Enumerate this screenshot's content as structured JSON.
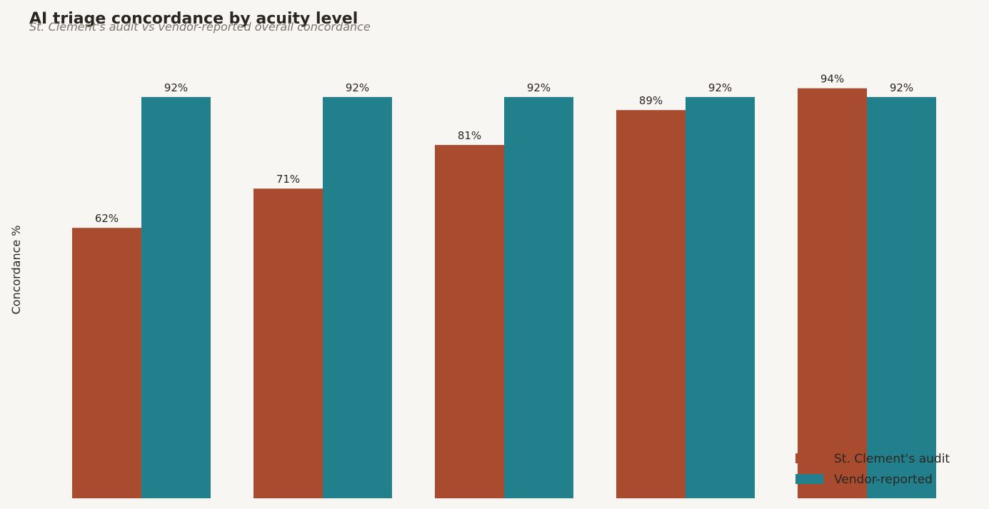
{
  "chart_data": {
    "type": "bar",
    "title": "AI triage concordance by acuity level",
    "subtitle": "St. Clement's audit vs vendor-reported overall concordance",
    "y_label": "Concordance %",
    "categories": [
      null,
      null,
      null,
      null,
      null
    ],
    "series": [
      {
        "name": "St. Clement's audit",
        "color": "#a84b2f",
        "values": [
          62,
          71,
          81,
          89,
          94
        ],
        "value_labels": [
          "62%",
          "71%",
          "81%",
          "89%",
          "94%"
        ]
      },
      {
        "name": "Vendor-reported",
        "color": "#22808c",
        "values": [
          92,
          92,
          92,
          92,
          92
        ],
        "value_labels": [
          "92%",
          "92%",
          "92%",
          "92%",
          "92%"
        ]
      }
    ],
    "ylim": [
      0,
      100
    ],
    "legend": "lower right"
  }
}
